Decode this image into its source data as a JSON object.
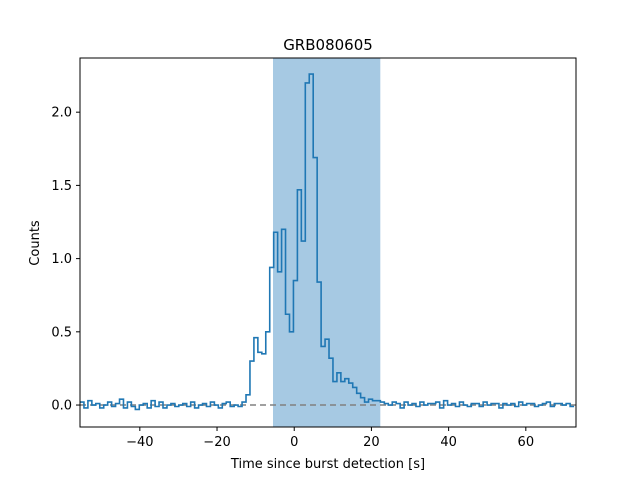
{
  "chart_data": {
    "type": "line",
    "title": "GRB080605",
    "xlabel": "Time since burst detection [s]",
    "ylabel": "Counts",
    "xlim": [
      -55.5,
      73
    ],
    "ylim": [
      -0.15,
      2.37
    ],
    "xticks": [
      -40,
      -20,
      0,
      20,
      40,
      60
    ],
    "xtick_labels": [
      "−40",
      "−20",
      "0",
      "20",
      "40",
      "60"
    ],
    "yticks": [
      0.0,
      0.5,
      1.0,
      1.5,
      2.0
    ],
    "ytick_labels": [
      "0.0",
      "0.5",
      "1.0",
      "1.5",
      "2.0"
    ],
    "grid": false,
    "line_style": "steps",
    "series_color": "#1f77b4",
    "highlight_color": "#a6c9e3",
    "baseline_color": "#808080",
    "highlight_interval": [
      -5.5,
      22.3
    ],
    "baseline_y": 0,
    "bin_width": 1.024,
    "x_start": -55.5,
    "values": [
      0.02,
      -0.02,
      0.03,
      0.0,
      0.01,
      -0.02,
      0.0,
      0.02,
      -0.01,
      0.01,
      0.04,
      -0.02,
      0.02,
      -0.01,
      -0.03,
      0.0,
      0.01,
      -0.02,
      0.03,
      -0.01,
      0.02,
      -0.02,
      0.0,
      0.01,
      -0.01,
      0.0,
      0.01,
      -0.01,
      0.02,
      -0.02,
      0.0,
      0.01,
      -0.01,
      0.02,
      0.0,
      -0.02,
      0.01,
      0.02,
      -0.01,
      0.0,
      -0.01,
      0.02,
      0.07,
      0.3,
      0.46,
      0.36,
      0.35,
      0.5,
      0.94,
      1.18,
      0.91,
      1.2,
      0.62,
      0.5,
      0.85,
      1.47,
      1.12,
      2.2,
      2.26,
      1.69,
      0.84,
      0.4,
      0.45,
      0.32,
      0.16,
      0.22,
      0.16,
      0.18,
      0.15,
      0.12,
      0.08,
      0.05,
      0.02,
      0.04,
      0.03,
      0.03,
      0.02,
      0.01,
      0.0,
      0.02,
      0.01,
      -0.02,
      0.02,
      0.0,
      0.01,
      -0.01,
      0.02,
      0.0,
      0.01,
      0.01,
      0.02,
      -0.02,
      0.03,
      0.0,
      0.01,
      -0.01,
      0.02,
      0.0,
      -0.01,
      0.01,
      0.01,
      -0.01,
      0.02,
      0.0,
      0.01,
      0.01,
      -0.02,
      0.01,
      0.0,
      0.01,
      -0.01,
      0.02,
      0.0,
      0.01,
      0.01,
      -0.01,
      0.0,
      0.01,
      0.02,
      -0.01,
      0.01,
      0.01,
      0.0,
      0.01,
      -0.01
    ]
  }
}
